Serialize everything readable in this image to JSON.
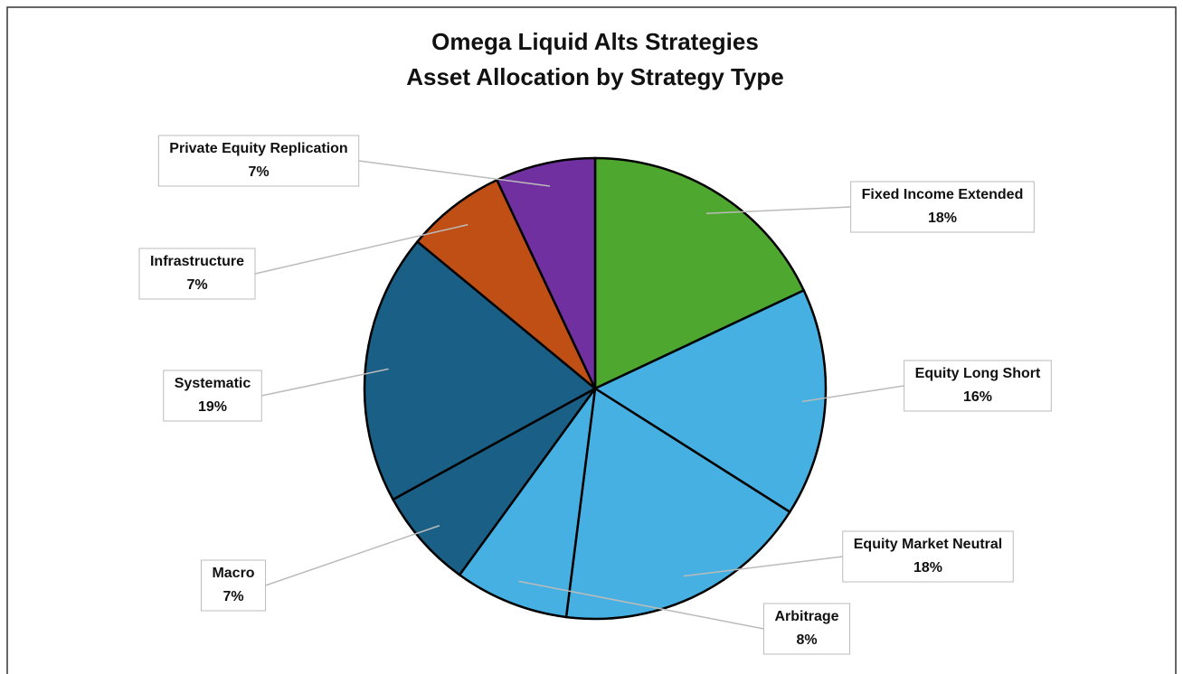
{
  "chart_data": {
    "type": "pie",
    "title": "Omega Liquid Alts Strategies",
    "subtitle": "Asset Allocation by Strategy Type",
    "categories": [
      "Fixed Income Extended",
      "Equity Long Short",
      "Equity Market Neutral",
      "Arbitrage",
      "Macro",
      "Systematic",
      "Infrastructure",
      "Private Equity Replication"
    ],
    "values": [
      18,
      16,
      18,
      8,
      7,
      19,
      7,
      7
    ],
    "value_labels": [
      "18%",
      "16%",
      "18%",
      "8%",
      "7%",
      "19%",
      "7%",
      "7%"
    ],
    "colors": [
      "#4ea72e",
      "#45b0e1",
      "#45b0e1",
      "#45b0e1",
      "#1a5f85",
      "#1a5f85",
      "#c04f15",
      "#7030a0"
    ]
  }
}
